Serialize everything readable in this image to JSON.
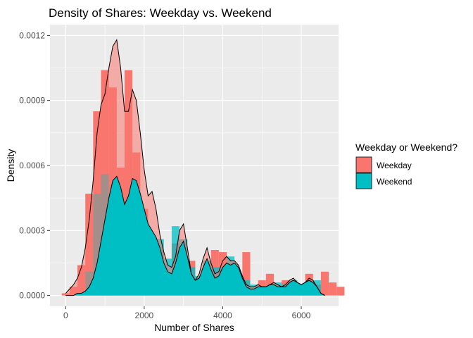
{
  "chart_data": {
    "type": "area",
    "title": "Density of Shares: Weekday vs. Weekend",
    "xlabel": "Number of Shares",
    "ylabel": "Density",
    "xlim": [
      -400,
      6950
    ],
    "ylim": [
      -5e-05,
      0.00125
    ],
    "x_ticks": [
      0,
      2000,
      4000,
      6000
    ],
    "x_tick_labels": [
      "0",
      "2000",
      "4000",
      "6000"
    ],
    "y_ticks": [
      0,
      0.0003,
      0.0006,
      0.0009,
      0.0012
    ],
    "y_tick_labels": [
      "0.0000",
      "0.0003",
      "0.0006",
      "0.0009",
      "0.0012"
    ],
    "grid": true,
    "legend": {
      "title": "Weekday or Weekend?",
      "position": "right",
      "entries": [
        "Weekday",
        "Weekend"
      ]
    },
    "colors": {
      "panel": "#ebebeb",
      "grid": "#ffffff",
      "weekday": "#f8766d",
      "weekend": "#00bfc4",
      "density_line": "#000000"
    },
    "histogram": {
      "bin_width": 200,
      "weekday": {
        "x_start": -100,
        "values": [
          1e-05,
          4e-05,
          0.00014,
          0.00047,
          0.00085,
          0.00104,
          0.00096,
          0.00059,
          0.00104,
          0.00066,
          0.0004,
          0.00026,
          0.00021,
          6e-05,
          0.00024,
          0.00016,
          0.00016,
          8e-05,
          5e-05,
          0.00021,
          0.0002,
          0.00015,
          4e-05,
          0.0002,
          3e-05,
          7e-05,
          0.0001,
          4e-05,
          7e-05,
          3e-05,
          4e-05,
          0.0001,
          5e-05,
          0.00011,
          6e-05,
          4e-05
        ]
      },
      "weekend": {
        "x_start": 500,
        "values": [
          0.00011,
          0.00047,
          0.00056,
          0.00041,
          0.00033,
          0.00029,
          0.00025,
          0.00028,
          0.00025,
          0.00026,
          0.00017,
          0.00032,
          0.00026,
          0.00013,
          9e-05,
          0.00016,
          0.00013,
          0.00013,
          0.00018,
          8e-05,
          7e-05,
          5e-05,
          4e-05,
          3e-05,
          6e-05,
          5e-05,
          7e-05,
          5e-05,
          5e-05,
          7e-05
        ]
      }
    },
    "series": [
      {
        "name": "Weekday",
        "x": [
          0,
          100,
          200,
          300,
          400,
          500,
          600,
          700,
          800,
          900,
          1000,
          1100,
          1200,
          1300,
          1400,
          1500,
          1600,
          1700,
          1800,
          1900,
          2000,
          2100,
          2200,
          2300,
          2400,
          2500,
          2600,
          2700,
          2800,
          2900,
          3000,
          3100,
          3200,
          3300,
          3400,
          3500,
          3600,
          3700,
          3800,
          3900,
          4000,
          4100,
          4200,
          4300,
          4400,
          4500,
          4600,
          4700,
          4800,
          4900,
          5000,
          5100,
          5200,
          5300,
          5400,
          5500,
          5600,
          5700,
          5800,
          5900,
          6000,
          6100,
          6200,
          6300,
          6400,
          6500,
          6600
        ],
        "y": [
          1e-05,
          3e-05,
          5e-05,
          8e-05,
          0.00013,
          0.00022,
          0.00035,
          0.00053,
          0.00075,
          0.00088,
          0.00093,
          0.00105,
          0.00115,
          0.00118,
          0.00105,
          0.00085,
          0.00085,
          0.00095,
          0.0009,
          0.00075,
          0.00058,
          0.00046,
          0.00048,
          0.0004,
          0.00028,
          0.0002,
          0.00014,
          0.00013,
          0.00018,
          0.0003,
          0.00033,
          0.00022,
          0.0001,
          7e-05,
          0.0001,
          0.00017,
          0.00022,
          0.00015,
          0.0001,
          0.00011,
          0.00016,
          0.00018,
          0.00016,
          0.00016,
          0.00014,
          9e-05,
          5e-05,
          4e-05,
          4e-05,
          5e-05,
          4e-05,
          4e-05,
          5e-05,
          6e-05,
          5e-05,
          4e-05,
          5e-05,
          7e-05,
          8e-05,
          6e-05,
          5e-05,
          6e-05,
          8e-05,
          7e-05,
          4e-05,
          1e-05,
          0.0
        ]
      },
      {
        "name": "Weekend",
        "x": [
          0,
          100,
          200,
          300,
          400,
          500,
          600,
          700,
          800,
          900,
          1000,
          1100,
          1200,
          1300,
          1400,
          1500,
          1600,
          1700,
          1800,
          1900,
          2000,
          2100,
          2200,
          2300,
          2400,
          2500,
          2600,
          2700,
          2800,
          2900,
          3000,
          3100,
          3200,
          3300,
          3400,
          3500,
          3600,
          3700,
          3800,
          3900,
          4000,
          4100,
          4200,
          4300,
          4400,
          4500,
          4600,
          4700,
          4800,
          4900,
          5000,
          5100,
          5200,
          5300,
          5400,
          5500,
          5600,
          5700,
          5800,
          5900,
          6000,
          6100,
          6200,
          6300,
          6400,
          6500,
          6600
        ],
        "y": [
          0.0,
          0.0,
          0.0,
          1e-05,
          1e-05,
          2e-05,
          4e-05,
          8e-05,
          0.00015,
          0.00025,
          0.00035,
          0.00045,
          0.00053,
          0.00055,
          0.0005,
          0.00042,
          0.00046,
          0.00054,
          0.00053,
          0.00047,
          0.0004,
          0.00033,
          0.0003,
          0.00027,
          0.00022,
          0.00015,
          0.00011,
          0.0001,
          0.00015,
          0.00022,
          0.00025,
          0.00018,
          0.0001,
          7e-05,
          8e-05,
          0.00013,
          0.00017,
          0.00012,
          8e-05,
          9e-05,
          0.00013,
          0.00015,
          0.00014,
          0.00015,
          0.00013,
          8e-05,
          4e-05,
          3e-05,
          3e-05,
          4e-05,
          4e-05,
          4e-05,
          5e-05,
          5e-05,
          4e-05,
          4e-05,
          4e-05,
          6e-05,
          7e-05,
          6e-05,
          5e-05,
          6e-05,
          7e-05,
          6e-05,
          4e-05,
          1e-05,
          0.0
        ]
      }
    ]
  }
}
